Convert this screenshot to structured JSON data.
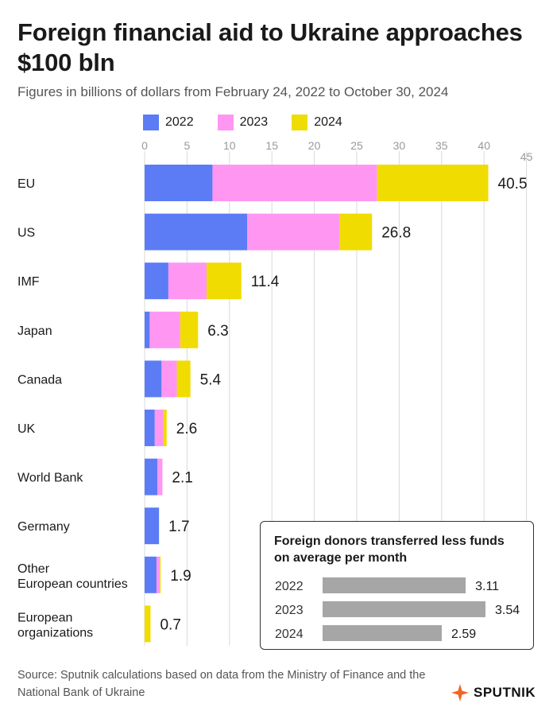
{
  "title": "Foreign financial aid to Ukraine approaches $100 bln",
  "subtitle": "Figures in billions of dollars from February 24, 2022 to October 30, 2024",
  "colors": {
    "y2022": "#5b7cf5",
    "y2023": "#ff96f2",
    "y2024": "#f0dc00",
    "grid": "#d9d9d9",
    "axis": "#999999",
    "inset_bar": "#a6a6a6",
    "brand": "#f26522"
  },
  "chart_data": [
    {
      "type": "bar",
      "orientation": "horizontal",
      "stacked": true,
      "title": "Foreign financial aid to Ukraine approaches $100 bln",
      "xlabel": "Figures in billions of dollars",
      "xlim": [
        0,
        45
      ],
      "x_ticks": [
        "0",
        "5",
        "10",
        "15",
        "20",
        "25",
        "30",
        "35",
        "40",
        "45"
      ],
      "legend": "top",
      "categories": [
        {
          "label": "EU",
          "total": "40.5"
        },
        {
          "label": "US",
          "total": "26.8"
        },
        {
          "label": "IMF",
          "total": "11.4"
        },
        {
          "label": "Japan",
          "total": "6.3"
        },
        {
          "label": "Canada",
          "total": "5.4"
        },
        {
          "label": "UK",
          "total": "2.6"
        },
        {
          "label": "World Bank",
          "total": "2.1"
        },
        {
          "label": "Germany",
          "total": "1.7"
        },
        {
          "label": "Other European countries",
          "total": "1.9"
        },
        {
          "label": "European organizations",
          "total": "0.7"
        }
      ],
      "series": [
        {
          "name": "2022",
          "color": "#5b7cf5",
          "values": [
            8.0,
            12.1,
            2.8,
            0.6,
            2.0,
            1.2,
            1.5,
            1.7,
            1.4,
            0.0
          ]
        },
        {
          "name": "2023",
          "color": "#ff96f2",
          "values": [
            19.4,
            10.9,
            4.5,
            3.6,
            1.8,
            1.0,
            0.6,
            0.0,
            0.4,
            0.0
          ]
        },
        {
          "name": "2024",
          "color": "#f0dc00",
          "values": [
            13.1,
            3.8,
            4.1,
            2.1,
            1.6,
            0.4,
            0.0,
            0.0,
            0.1,
            0.7
          ]
        }
      ]
    },
    {
      "type": "bar",
      "orientation": "horizontal",
      "title": "Foreign donors transferred less funds on average per month",
      "categories": [
        "2022",
        "2023",
        "2024"
      ],
      "values": [
        3.11,
        3.54,
        2.59
      ],
      "labels": [
        "3.11",
        "3.54",
        "2.59"
      ],
      "xlim": [
        0,
        3.54
      ]
    }
  ],
  "source": "Source: Sputnik calculations based on data from the Ministry of Finance and the National Bank of Ukraine",
  "brand": {
    "name": "SPUTNIK"
  }
}
